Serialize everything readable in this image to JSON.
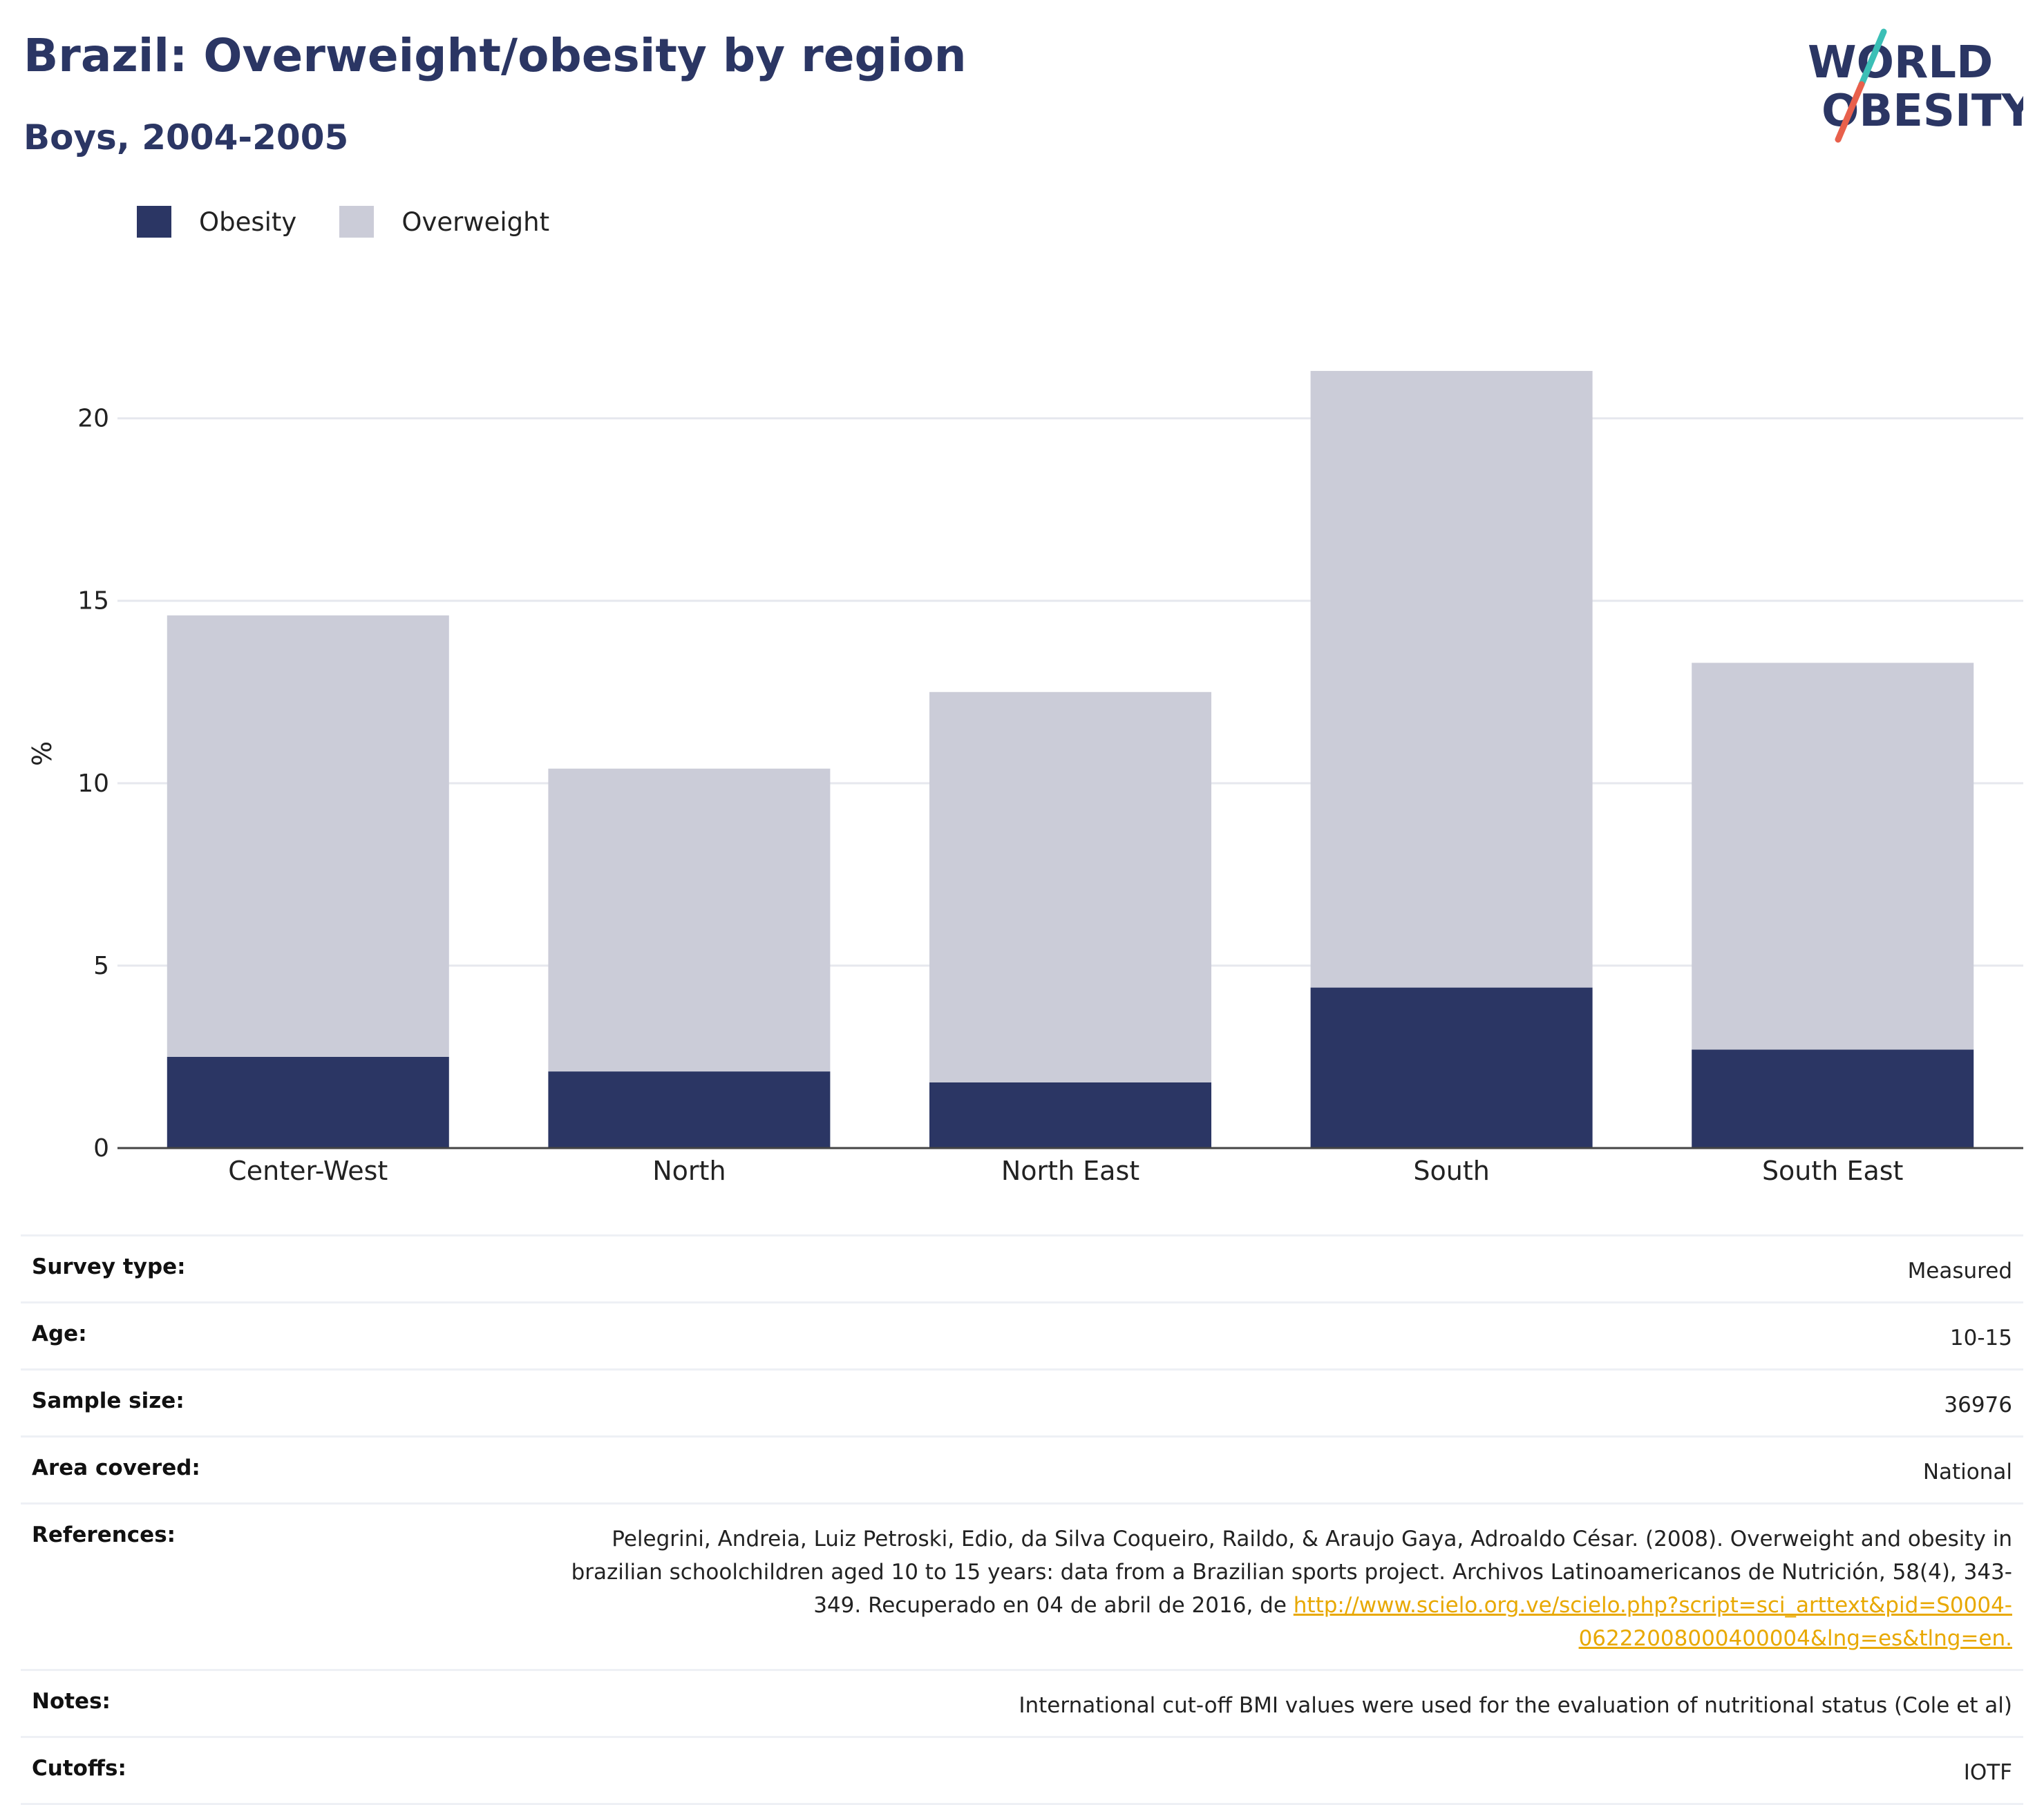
{
  "header": {
    "title": "Brazil: Overweight/obesity by region",
    "subtitle": "Boys, 2004-2005"
  },
  "logo": {
    "line1": "WORLD",
    "line2": "OBESITY",
    "slash_colors": [
      "#3bbfb6",
      "#e8604c"
    ]
  },
  "legend": [
    {
      "label": "Obesity",
      "color": "#2b3664"
    },
    {
      "label": "Overweight",
      "color": "#cbccd8"
    }
  ],
  "chart_data": {
    "type": "bar",
    "stacked": true,
    "categories": [
      "Center-West",
      "North",
      "North East",
      "South",
      "South East"
    ],
    "series": [
      {
        "name": "Obesity",
        "values": [
          2.5,
          2.1,
          1.8,
          4.4,
          2.7
        ],
        "color": "#2b3664"
      },
      {
        "name": "Overweight",
        "values": [
          12.1,
          8.3,
          10.7,
          16.9,
          10.6
        ],
        "color": "#cbccd8"
      }
    ],
    "ylabel": "%",
    "xlabel": "",
    "ylim": [
      0,
      22
    ],
    "yticks": [
      0,
      5,
      10,
      15,
      20
    ],
    "grid": true
  },
  "info": [
    {
      "label": "Survey type:",
      "value": "Measured"
    },
    {
      "label": "Age:",
      "value": "10-15"
    },
    {
      "label": "Sample size:",
      "value": "36976"
    },
    {
      "label": "Area covered:",
      "value": "National"
    },
    {
      "label": "References:",
      "value": "Pelegrini, Andreia, Luiz Petroski, Edio, da Silva Coqueiro, Raildo, & Araujo Gaya, Adroaldo César. (2008). Overweight and obesity in brazilian schoolchildren aged 10 to 15 years: data from a Brazilian sports project. Archivos Latinoamericanos de Nutrición, 58(4), 343-349. Recuperado en 04 de abril de 2016, de ",
      "link": "http://www.scielo.org.ve/scielo.php?script=sci_arttext&pid=S0004-06222008000400004&lng=es&tlng=en."
    },
    {
      "label": "Notes:",
      "value": "International cut-off BMI values were used for the evaluation of nutritional status (Cole et al)"
    },
    {
      "label": "Cutoffs:",
      "value": "IOTF"
    }
  ]
}
